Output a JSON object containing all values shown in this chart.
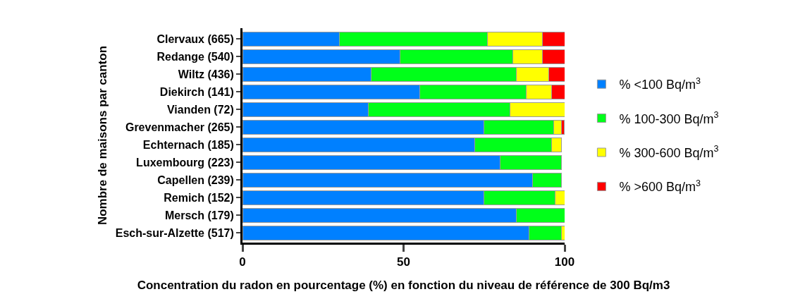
{
  "chart_data": {
    "type": "bar",
    "orientation": "horizontal",
    "stacked": true,
    "xlabel": "Concentration du radon en pourcentage (%) en fonction du niveau de référence de 300 Bq/m3",
    "ylabel": "Nombre de maisons par canton",
    "categories": [
      "Clervaux (665)",
      "Redange (540)",
      "Wiltz (436)",
      "Diekirch (141)",
      "Vianden (72)",
      "Grevenmacher (265)",
      "Echternach (185)",
      "Luxembourg (223)",
      "Capellen (239)",
      "Remich (152)",
      "Mersch (179)",
      "Esch-sur-Alzette (517)"
    ],
    "series": [
      {
        "name": "% <100 Bq/m$^{3}$",
        "color": "#0080ff",
        "values": [
          30,
          49,
          40,
          55,
          39,
          75,
          72,
          80,
          90,
          75,
          85,
          89
        ]
      },
      {
        "name": "% 100-300 Bq/m$^{3}$",
        "color": "#00ff19",
        "values": [
          46,
          35,
          45,
          33,
          44,
          21.5,
          24,
          19,
          9,
          22,
          15,
          10
        ]
      },
      {
        "name": "% 300-600 Bq/m$^{3}$",
        "color": "#ffff00",
        "values": [
          17,
          9,
          10,
          8,
          17,
          2.5,
          3,
          null,
          null,
          3,
          null,
          1
        ]
      },
      {
        "name": "% >600 Bq/m$^{3}$",
        "color": "#ff0000",
        "values": [
          7,
          7,
          5,
          4,
          null,
          0.8,
          null,
          null,
          null,
          null,
          null,
          null
        ]
      }
    ],
    "xlim": [
      0,
      100
    ],
    "xticks": [
      0,
      50,
      100
    ],
    "legend": "right"
  }
}
